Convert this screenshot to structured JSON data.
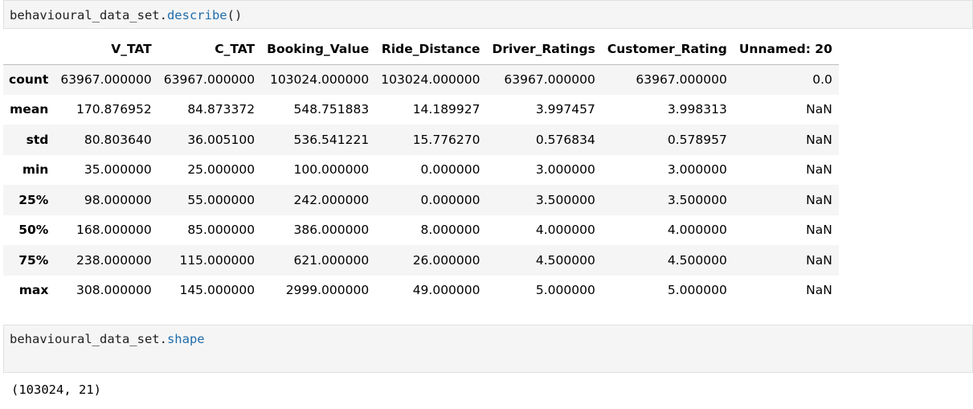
{
  "cell1": {
    "code_obj": "behavioural_data_set.",
    "code_fn": "describe",
    "code_paren": "()"
  },
  "table": {
    "columns": [
      "",
      "V_TAT",
      "C_TAT",
      "Booking_Value",
      "Ride_Distance",
      "Driver_Ratings",
      "Customer_Rating",
      "Unnamed: 20"
    ],
    "rows": [
      {
        "label": "count",
        "values": [
          "63967.000000",
          "63967.000000",
          "103024.000000",
          "103024.000000",
          "63967.000000",
          "63967.000000",
          "0.0"
        ]
      },
      {
        "label": "mean",
        "values": [
          "170.876952",
          "84.873372",
          "548.751883",
          "14.189927",
          "3.997457",
          "3.998313",
          "NaN"
        ]
      },
      {
        "label": "std",
        "values": [
          "80.803640",
          "36.005100",
          "536.541221",
          "15.776270",
          "0.576834",
          "0.578957",
          "NaN"
        ]
      },
      {
        "label": "min",
        "values": [
          "35.000000",
          "25.000000",
          "100.000000",
          "0.000000",
          "3.000000",
          "3.000000",
          "NaN"
        ]
      },
      {
        "label": "25%",
        "values": [
          "98.000000",
          "55.000000",
          "242.000000",
          "0.000000",
          "3.500000",
          "3.500000",
          "NaN"
        ]
      },
      {
        "label": "50%",
        "values": [
          "168.000000",
          "85.000000",
          "386.000000",
          "8.000000",
          "4.000000",
          "4.000000",
          "NaN"
        ]
      },
      {
        "label": "75%",
        "values": [
          "238.000000",
          "115.000000",
          "621.000000",
          "26.000000",
          "4.500000",
          "4.500000",
          "NaN"
        ]
      },
      {
        "label": "max",
        "values": [
          "308.000000",
          "145.000000",
          "2999.000000",
          "49.000000",
          "5.000000",
          "5.000000",
          "NaN"
        ]
      }
    ]
  },
  "cell2": {
    "code_obj": "behavioural_data_set.",
    "code_attr": "shape",
    "output": "(103024, 21)"
  }
}
